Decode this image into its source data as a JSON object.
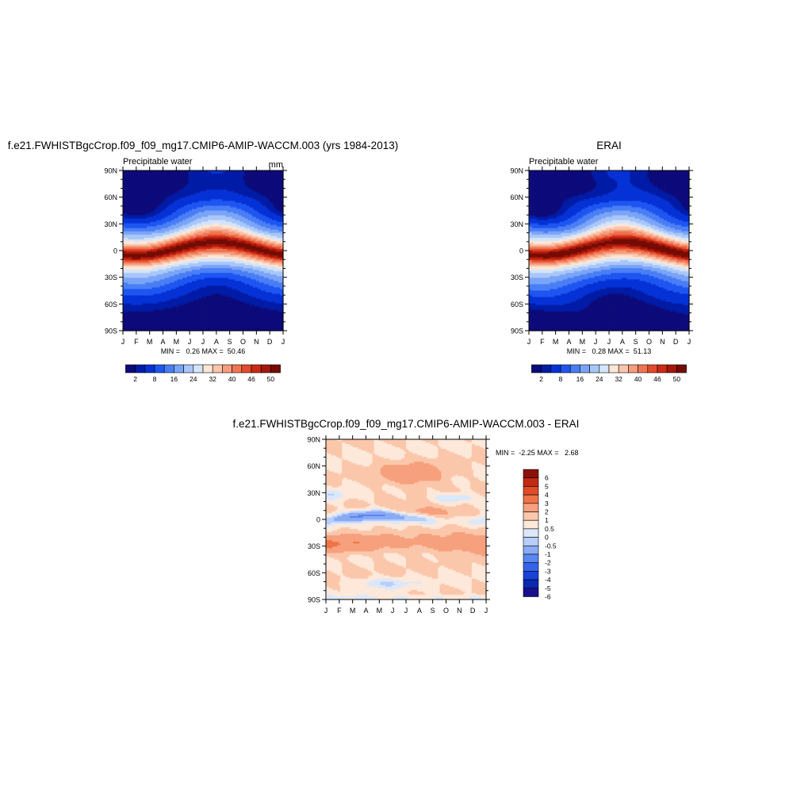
{
  "chart_data": [
    {
      "type": "heatmap",
      "title": "f.e21.FWHISTBgcCrop.f09_f09_mg17.CMIP6-AMIP-WACCM.003 (yrs 1984-2013)",
      "subtitle_left": "Precipitable water",
      "subtitle_right": "mm",
      "x_ticks": [
        "J",
        "F",
        "M",
        "A",
        "M",
        "J",
        "J",
        "A",
        "S",
        "O",
        "N",
        "D",
        "J"
      ],
      "y_ticks": [
        "90N",
        "60N",
        "30N",
        "0",
        "30S",
        "60S",
        "90S"
      ],
      "stats": "MIN =   0.26 MAX =  50.46",
      "min": 0.26,
      "max": 50.46,
      "colorbar": {
        "levels": [
          2,
          4,
          8,
          12,
          16,
          20,
          24,
          28,
          32,
          36,
          40,
          44,
          46,
          48,
          50
        ],
        "labels": [
          "2",
          "8",
          "16",
          "24",
          "32",
          "40",
          "46",
          "50"
        ],
        "placement": "bottom"
      },
      "max_lat": 9,
      "max_month": "Aug"
    },
    {
      "type": "heatmap",
      "title": "ERAI",
      "subtitle_left": "Precipitable water",
      "subtitle_right": "",
      "x_ticks": [
        "J",
        "F",
        "M",
        "A",
        "M",
        "J",
        "J",
        "A",
        "S",
        "O",
        "N",
        "D",
        "J"
      ],
      "y_ticks": [
        "90N",
        "60N",
        "30N",
        "0",
        "30S",
        "60S",
        "90S"
      ],
      "stats": "MIN =   0.28 MAX =  51.13",
      "min": 0.28,
      "max": 51.13,
      "colorbar": {
        "levels": [
          2,
          4,
          8,
          12,
          16,
          20,
          24,
          28,
          32,
          36,
          40,
          44,
          46,
          48,
          50
        ],
        "labels": [
          "2",
          "8",
          "16",
          "24",
          "32",
          "40",
          "46",
          "50"
        ],
        "placement": "bottom"
      }
    },
    {
      "type": "heatmap",
      "title": "f.e21.FWHISTBgcCrop.f09_f09_mg17.CMIP6-AMIP-WACCM.003 - ERAI",
      "x_ticks": [
        "J",
        "F",
        "M",
        "A",
        "M",
        "J",
        "J",
        "A",
        "S",
        "O",
        "N",
        "D",
        "J"
      ],
      "y_ticks": [
        "90N",
        "60N",
        "30N",
        "0",
        "30S",
        "60S",
        "90S"
      ],
      "stats": "MIN =  -2.25 MAX =   2.68",
      "min": -2.25,
      "max": 2.68,
      "colorbar": {
        "levels": [
          -6,
          -5,
          -4,
          -3,
          -2,
          -1,
          -0.5,
          0,
          0.5,
          1,
          2,
          3,
          4,
          5,
          6
        ],
        "labels": [
          "6",
          "5",
          "4",
          "3",
          "2",
          "1",
          "0.5",
          "0",
          "-0.5",
          "-1",
          "-2",
          "-3",
          "-4",
          "-5",
          "-6"
        ],
        "placement": "right"
      }
    }
  ],
  "colors": {
    "sequential": [
      "#0d0b7a",
      "#001ca6",
      "#0532d6",
      "#1f55f0",
      "#4a7ef5",
      "#7aa4f7",
      "#a9c6f9",
      "#d3e4fb",
      "#fce6d6",
      "#fac5ad",
      "#f59d7d",
      "#ef7552",
      "#e44b2c",
      "#cc2a14",
      "#a3180b",
      "#740c05"
    ],
    "diverging": [
      "#1a0f8c",
      "#0a28b0",
      "#1743d9",
      "#3563ea",
      "#5a86f2",
      "#8aaaf4",
      "#b8cdf7",
      "#dbe8fb",
      "#fde8da",
      "#fbc7ab",
      "#f6a07d",
      "#ed7449",
      "#e24b26",
      "#c02a12",
      "#8c1207"
    ]
  }
}
